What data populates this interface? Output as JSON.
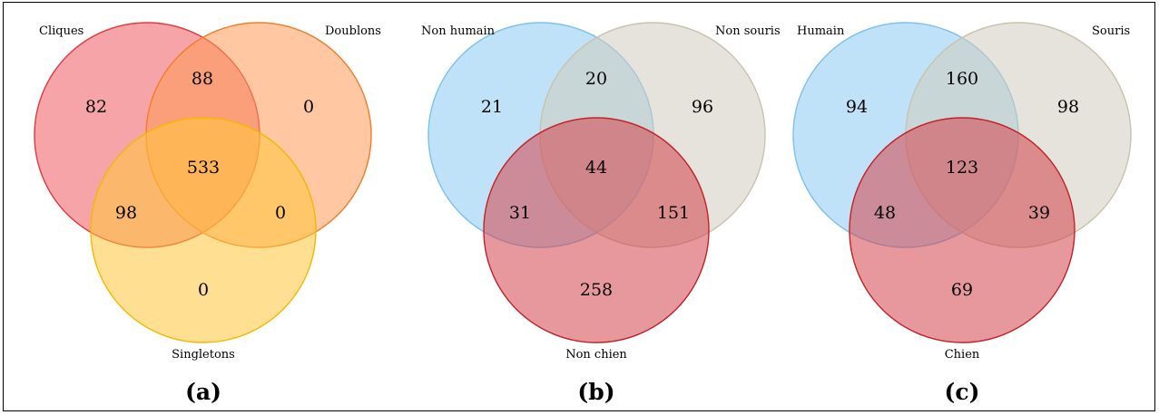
{
  "panels": [
    {
      "caption": "(a)",
      "sets": [
        {
          "label": "Cliques",
          "fill": "#ee5a60",
          "stroke": "#e03a3f"
        },
        {
          "label": "Doublons",
          "fill": "#ff9a55",
          "stroke": "#f47c2c"
        },
        {
          "label": "Singletons",
          "fill": "#ffc73a",
          "stroke": "#f5b800"
        }
      ],
      "counts": {
        "a": "82",
        "b": "0",
        "c": "0",
        "ab": "88",
        "ac": "98",
        "bc": "0",
        "abc": "533"
      }
    },
    {
      "caption": "(b)",
      "sets": [
        {
          "label": "Non humain",
          "fill": "#8ccaf2",
          "stroke": "#7ec0ee"
        },
        {
          "label": "Non souris",
          "fill": "#d0ccbd",
          "stroke": "#c9c2ad"
        },
        {
          "label": "Non chien",
          "fill": "#d4444a",
          "stroke": "#c42026"
        }
      ],
      "counts": {
        "a": "21",
        "b": "96",
        "c": "258",
        "ab": "20",
        "ac": "31",
        "bc": "151",
        "abc": "44"
      }
    },
    {
      "caption": "(c)",
      "sets": [
        {
          "label": "Humain",
          "fill": "#8ccaf2",
          "stroke": "#7ec0ee"
        },
        {
          "label": "Souris",
          "fill": "#d0ccbd",
          "stroke": "#c9c2ad"
        },
        {
          "label": "Chien",
          "fill": "#d4444a",
          "stroke": "#c42026"
        }
      ],
      "counts": {
        "a": "94",
        "b": "98",
        "c": "69",
        "ab": "160",
        "ac": "48",
        "bc": "39",
        "abc": "123"
      }
    }
  ]
}
